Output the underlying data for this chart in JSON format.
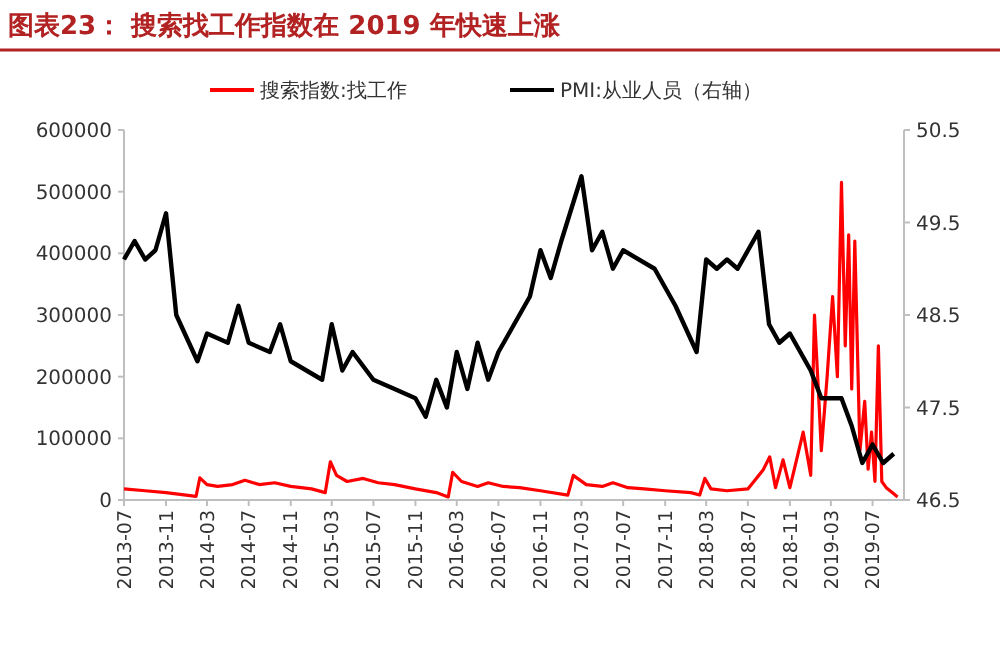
{
  "chart_data": {
    "type": "line",
    "title": "图表23：  搜索找工作指数在 2019 年快速上涨",
    "legend": "top",
    "marker": "none",
    "line_style": "solid",
    "grid": false,
    "xlim": [
      "2013-07",
      "2019-10"
    ],
    "xticks": [
      "2013-07",
      "2013-11",
      "2014-03",
      "2014-07",
      "2014-11",
      "2015-03",
      "2015-07",
      "2015-11",
      "2016-03",
      "2016-07",
      "2016-11",
      "2017-03",
      "2017-07",
      "2017-11",
      "2018-03",
      "2018-07",
      "2018-11",
      "2019-03",
      "2019-07"
    ],
    "ylim": [
      0,
      600000
    ],
    "yticks": [
      0,
      100000,
      200000,
      300000,
      400000,
      500000,
      600000
    ],
    "y2lim": [
      46.5,
      50.5
    ],
    "y2ticks": [
      46.5,
      47.5,
      48.5,
      49.5,
      50.5
    ],
    "series": [
      {
        "name": "搜索指数:找工作",
        "color": "#ff0000",
        "x": [
          "2013-07-01",
          "2013-09-01",
          "2013-11-01",
          "2014-01-28",
          "2014-02-08",
          "2014-03-01",
          "2014-04-01",
          "2014-05-15",
          "2014-06-20",
          "2014-08-01",
          "2014-09-15",
          "2014-11-01",
          "2015-01-01",
          "2015-02-10",
          "2015-02-25",
          "2015-03-15",
          "2015-04-15",
          "2015-06-01",
          "2015-07-15",
          "2015-09-01",
          "2015-11-01",
          "2016-01-01",
          "2016-02-05",
          "2016-02-18",
          "2016-03-15",
          "2016-05-01",
          "2016-06-01",
          "2016-07-15",
          "2016-09-01",
          "2016-11-01",
          "2017-01-20",
          "2017-02-05",
          "2017-03-15",
          "2017-05-01",
          "2017-06-01",
          "2017-07-15",
          "2017-09-01",
          "2017-11-01",
          "2018-01-15",
          "2018-02-10",
          "2018-02-25",
          "2018-03-15",
          "2018-05-01",
          "2018-07-01",
          "2018-08-15",
          "2018-09-03",
          "2018-09-20",
          "2018-10-12",
          "2018-11-01",
          "2018-12-10",
          "2019-01-01",
          "2019-01-12",
          "2019-01-25",
          "2019-02-01",
          "2019-02-18",
          "2019-03-06",
          "2019-03-20",
          "2019-04-01",
          "2019-04-12",
          "2019-04-22",
          "2019-05-01",
          "2019-05-10",
          "2019-05-25",
          "2019-06-08",
          "2019-06-18",
          "2019-06-28",
          "2019-07-08",
          "2019-07-18",
          "2019-07-28",
          "2019-08-10",
          "2019-09-01",
          "2019-09-12"
        ],
        "values": [
          18000,
          15000,
          12000,
          6000,
          36000,
          25000,
          22000,
          25000,
          32000,
          25000,
          28000,
          22000,
          18000,
          12000,
          62000,
          40000,
          30000,
          35000,
          28000,
          25000,
          18000,
          12000,
          5000,
          45000,
          30000,
          22000,
          28000,
          22000,
          20000,
          15000,
          8000,
          40000,
          25000,
          22000,
          28000,
          20000,
          18000,
          15000,
          12000,
          8000,
          35000,
          18000,
          15000,
          18000,
          49000,
          70000,
          20000,
          65000,
          20000,
          110000,
          40000,
          300000,
          160000,
          80000,
          200000,
          330000,
          200000,
          515000,
          250000,
          430000,
          180000,
          420000,
          80000,
          160000,
          50000,
          110000,
          30000,
          250000,
          30000,
          20000,
          10000,
          5000
        ]
      },
      {
        "name": "PMI:从业人员（右轴）",
        "color": "#000000",
        "axis": "y2",
        "x": [
          "2013-07",
          "2013-08",
          "2013-09",
          "2013-10",
          "2013-11",
          "2013-12",
          "2014-02",
          "2014-03",
          "2014-05",
          "2014-06",
          "2014-07",
          "2014-09",
          "2014-10",
          "2014-11",
          "2015-02",
          "2015-03",
          "2015-04",
          "2015-05",
          "2015-07",
          "2015-09",
          "2015-11",
          "2015-12",
          "2016-01",
          "2016-02",
          "2016-03",
          "2016-04",
          "2016-05",
          "2016-06",
          "2016-07",
          "2016-10",
          "2016-11",
          "2016-12",
          "2017-01",
          "2017-03",
          "2017-04",
          "2017-05",
          "2017-06",
          "2017-07",
          "2017-10",
          "2017-12",
          "2018-02",
          "2018-03",
          "2018-04",
          "2018-05",
          "2018-06",
          "2018-08",
          "2018-09",
          "2018-10",
          "2018-11",
          "2019-01",
          "2019-02",
          "2019-04",
          "2019-05",
          "2019-06",
          "2019-07",
          "2019-08",
          "2019-09"
        ],
        "values": [
          49.1,
          49.3,
          49.1,
          49.2,
          49.6,
          48.5,
          48.0,
          48.3,
          48.2,
          48.6,
          48.2,
          48.1,
          48.4,
          48.0,
          47.8,
          48.4,
          47.9,
          48.1,
          47.8,
          47.7,
          47.6,
          47.4,
          47.8,
          47.5,
          48.1,
          47.7,
          48.2,
          47.8,
          48.1,
          48.7,
          49.2,
          48.9,
          49.3,
          50.0,
          49.2,
          49.4,
          49.0,
          49.2,
          49.0,
          48.6,
          48.1,
          49.1,
          49.0,
          49.1,
          49.0,
          49.4,
          48.4,
          48.2,
          48.3,
          47.9,
          47.6,
          47.6,
          47.3,
          46.9,
          47.1,
          46.9,
          47.0
        ]
      }
    ]
  }
}
